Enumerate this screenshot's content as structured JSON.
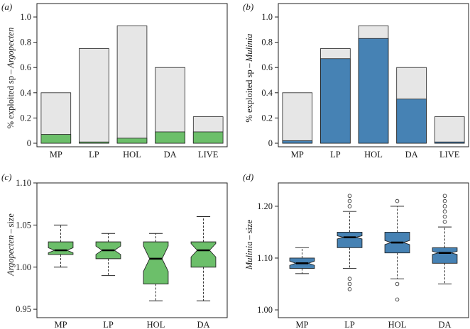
{
  "colors": {
    "green": "#6cbf6a",
    "blue": "#4682b4",
    "grey": "#e6e6e6",
    "stroke": "#222222"
  },
  "chart_data": [
    {
      "panel_label": "(a)",
      "type": "bar",
      "ylabel_pre": "% exploited sp – ",
      "ylabel_taxon": "Argopecten",
      "categories": [
        "MP",
        "LP",
        "HOL",
        "DA",
        "LIVE"
      ],
      "ylim": [
        0,
        1.0
      ],
      "yticks": [
        0,
        0.2,
        0.4,
        0.6,
        0.8,
        1.0
      ],
      "ytick_labels": [
        "0",
        "0.2",
        "0.4",
        "0.6",
        "0.8",
        "1.0"
      ],
      "series": [
        {
          "role": "total",
          "color": "#e6e6e6",
          "values": [
            0.4,
            0.75,
            0.93,
            0.6,
            0.21
          ]
        },
        {
          "role": "taxon",
          "color": "#6cbf6a",
          "values": [
            0.07,
            0.01,
            0.04,
            0.09,
            0.09
          ]
        }
      ]
    },
    {
      "panel_label": "(b)",
      "type": "bar",
      "ylabel_pre": "% exploited sp – ",
      "ylabel_taxon": "Mulinia",
      "categories": [
        "MP",
        "LP",
        "HOL",
        "DA",
        "LIVE"
      ],
      "ylim": [
        0,
        1.0
      ],
      "yticks": [
        0,
        0.2,
        0.4,
        0.6,
        0.8,
        1.0
      ],
      "ytick_labels": [
        "0",
        "0.2",
        "0.4",
        "0.6",
        "0.8",
        "1.0"
      ],
      "series": [
        {
          "role": "total",
          "color": "#e6e6e6",
          "values": [
            0.4,
            0.75,
            0.93,
            0.6,
            0.21
          ]
        },
        {
          "role": "taxon",
          "color": "#4682b4",
          "values": [
            0.02,
            0.67,
            0.83,
            0.35,
            0.01
          ]
        }
      ]
    },
    {
      "panel_label": "(c)",
      "type": "boxplot",
      "ylabel_taxon": "Argopecten",
      "ylabel_post": " – size",
      "categories": [
        "MP",
        "LP",
        "HOL",
        "DA"
      ],
      "ylim": [
        0.94,
        1.1
      ],
      "yticks": [
        0.95,
        1.0,
        1.05,
        1.1
      ],
      "ytick_labels": [
        "0.95",
        "1.00",
        "1.05",
        "1.10"
      ],
      "color": "#6cbf6a",
      "boxes": [
        {
          "min": 1.0,
          "q1": 1.015,
          "median": 1.02,
          "q3": 1.03,
          "max": 1.05,
          "notch_lo": 1.017,
          "notch_hi": 1.023,
          "outliers": []
        },
        {
          "min": 0.99,
          "q1": 1.01,
          "median": 1.02,
          "q3": 1.03,
          "max": 1.04,
          "notch_lo": 1.015,
          "notch_hi": 1.025,
          "outliers": []
        },
        {
          "min": 0.96,
          "q1": 0.98,
          "median": 1.01,
          "q3": 1.03,
          "max": 1.04,
          "notch_lo": 0.995,
          "notch_hi": 1.025,
          "outliers": []
        },
        {
          "min": 0.96,
          "q1": 1.0,
          "median": 1.02,
          "q3": 1.03,
          "max": 1.06,
          "notch_lo": 1.012,
          "notch_hi": 1.028,
          "outliers": []
        }
      ]
    },
    {
      "panel_label": "(d)",
      "type": "boxplot",
      "ylabel_taxon": "Mulinia",
      "ylabel_post": " – size",
      "categories": [
        "MP",
        "LP",
        "HOL",
        "DA"
      ],
      "ylim": [
        0.985,
        1.245
      ],
      "yticks": [
        1.0,
        1.1,
        1.2
      ],
      "ytick_labels": [
        "1.00",
        "1.10",
        "1.20"
      ],
      "color": "#4682b4",
      "boxes": [
        {
          "min": 1.07,
          "q1": 1.08,
          "median": 1.09,
          "q3": 1.1,
          "max": 1.12,
          "notch_lo": 1.086,
          "notch_hi": 1.094,
          "outliers": []
        },
        {
          "min": 1.08,
          "q1": 1.12,
          "median": 1.14,
          "q3": 1.15,
          "max": 1.19,
          "notch_lo": 1.137,
          "notch_hi": 1.143,
          "outliers": [
            1.04,
            1.05,
            1.06,
            1.2,
            1.21,
            1.22
          ]
        },
        {
          "min": 1.06,
          "q1": 1.11,
          "median": 1.13,
          "q3": 1.15,
          "max": 1.2,
          "notch_lo": 1.126,
          "notch_hi": 1.134,
          "outliers": [
            1.02,
            1.05,
            1.21
          ]
        },
        {
          "min": 1.05,
          "q1": 1.09,
          "median": 1.11,
          "q3": 1.12,
          "max": 1.16,
          "notch_lo": 1.107,
          "notch_hi": 1.113,
          "outliers": [
            1.17,
            1.18,
            1.19,
            1.2,
            1.21,
            1.22
          ]
        }
      ]
    }
  ]
}
